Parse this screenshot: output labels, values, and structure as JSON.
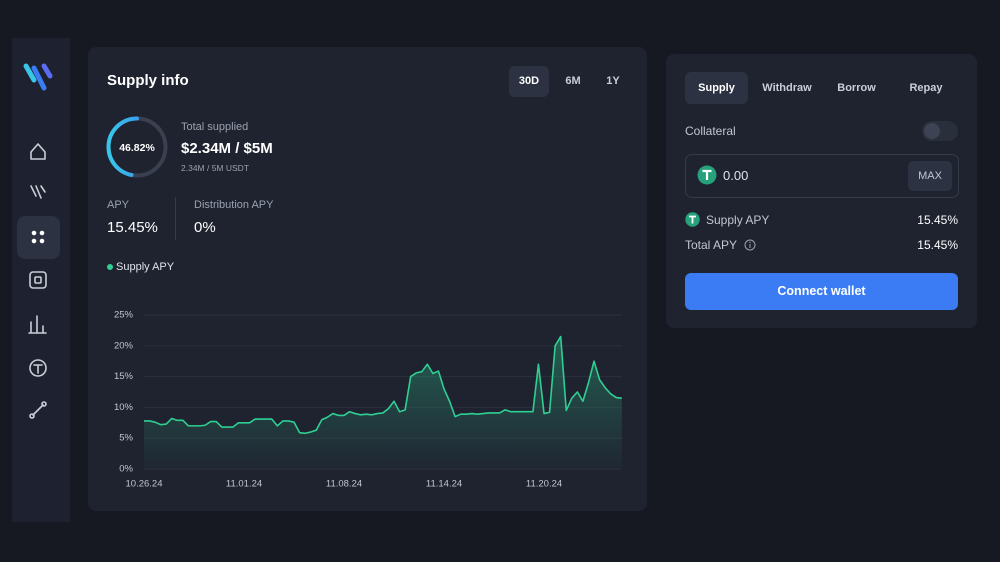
{
  "supply_info": {
    "title": "Supply info",
    "ranges": [
      "30D",
      "6M",
      "1Y"
    ],
    "gauge": {
      "value": 46.82,
      "label": "46.82%"
    },
    "total_supplied": {
      "label": "Total supplied",
      "value": "$2.34M / $5M",
      "detail": "2.34M / 5M USDT"
    },
    "stats": [
      {
        "label": "APY",
        "value": "15.45%"
      },
      {
        "label": "Distribution APY",
        "value": "0%"
      }
    ]
  },
  "chart_data": {
    "type": "line",
    "categories": [
      "10.26.24",
      null,
      null,
      null,
      null,
      null,
      null,
      null,
      null,
      null,
      null,
      null,
      null,
      null,
      null,
      null,
      null,
      null,
      "11.01.24",
      null,
      null,
      null,
      null,
      null,
      null,
      null,
      null,
      null,
      null,
      null,
      null,
      null,
      null,
      null,
      null,
      null,
      "11.08.24",
      null,
      null,
      null,
      null,
      null,
      null,
      null,
      null,
      null,
      null,
      null,
      null,
      null,
      null,
      null,
      null,
      null,
      "11.14.24",
      null,
      null,
      null,
      null,
      null,
      null,
      null,
      null,
      null,
      null,
      null,
      null,
      null,
      null,
      null,
      null,
      null,
      "11.20.24",
      null,
      null,
      null,
      null,
      null,
      null,
      null,
      null,
      null,
      null,
      null,
      null,
      null,
      null
    ],
    "series": [
      {
        "name": "Supply APY",
        "color": "#2fcf93",
        "values": [
          7.8,
          7.8,
          7.6,
          7.2,
          7.3,
          8.2,
          7.9,
          7.9,
          7.0,
          7.0,
          7.0,
          7.1,
          7.7,
          7.7,
          6.8,
          6.8,
          6.8,
          7.5,
          7.5,
          7.5,
          8.1,
          8.1,
          8.1,
          8.1,
          7.0,
          7.8,
          7.8,
          7.6,
          5.9,
          5.8,
          6.0,
          6.3,
          8.0,
          8.4,
          9.0,
          8.7,
          8.7,
          9.3,
          9.0,
          8.8,
          8.9,
          8.8,
          9.0,
          9.1,
          9.8,
          11.0,
          9.3,
          9.6,
          15.0,
          15.6,
          15.8,
          17.0,
          15.5,
          15.9,
          13.0,
          11.0,
          8.5,
          8.9,
          8.9,
          9.0,
          8.9,
          9.0,
          9.1,
          9.1,
          9.1,
          9.6,
          9.3,
          9.3,
          9.3,
          9.3,
          9.3,
          17.0,
          9.0,
          9.2,
          20.0,
          21.5,
          9.5,
          11.5,
          12.5,
          11.0,
          14.0,
          17.5,
          14.5,
          13.2,
          12.2,
          11.6,
          11.5
        ]
      }
    ],
    "ylim": [
      0,
      25
    ],
    "yticks": [
      {
        "value": 0,
        "label": "0%"
      },
      {
        "value": 5,
        "label": "5%"
      },
      {
        "value": 10,
        "label": "10%"
      },
      {
        "value": 15,
        "label": "15%"
      },
      {
        "value": 20,
        "label": "20%"
      },
      {
        "value": 25,
        "label": "25%"
      }
    ],
    "grid": true
  },
  "action_panel": {
    "tabs": [
      "Supply",
      "Withdraw",
      "Borrow",
      "Repay"
    ],
    "collateral": "Collateral",
    "amount": "0.00",
    "max": "MAX",
    "rows": [
      {
        "label": "Supply APY",
        "value": "15.45%"
      },
      {
        "label": "Total APY",
        "value": "15.45%"
      }
    ],
    "button": "Connect wallet"
  }
}
